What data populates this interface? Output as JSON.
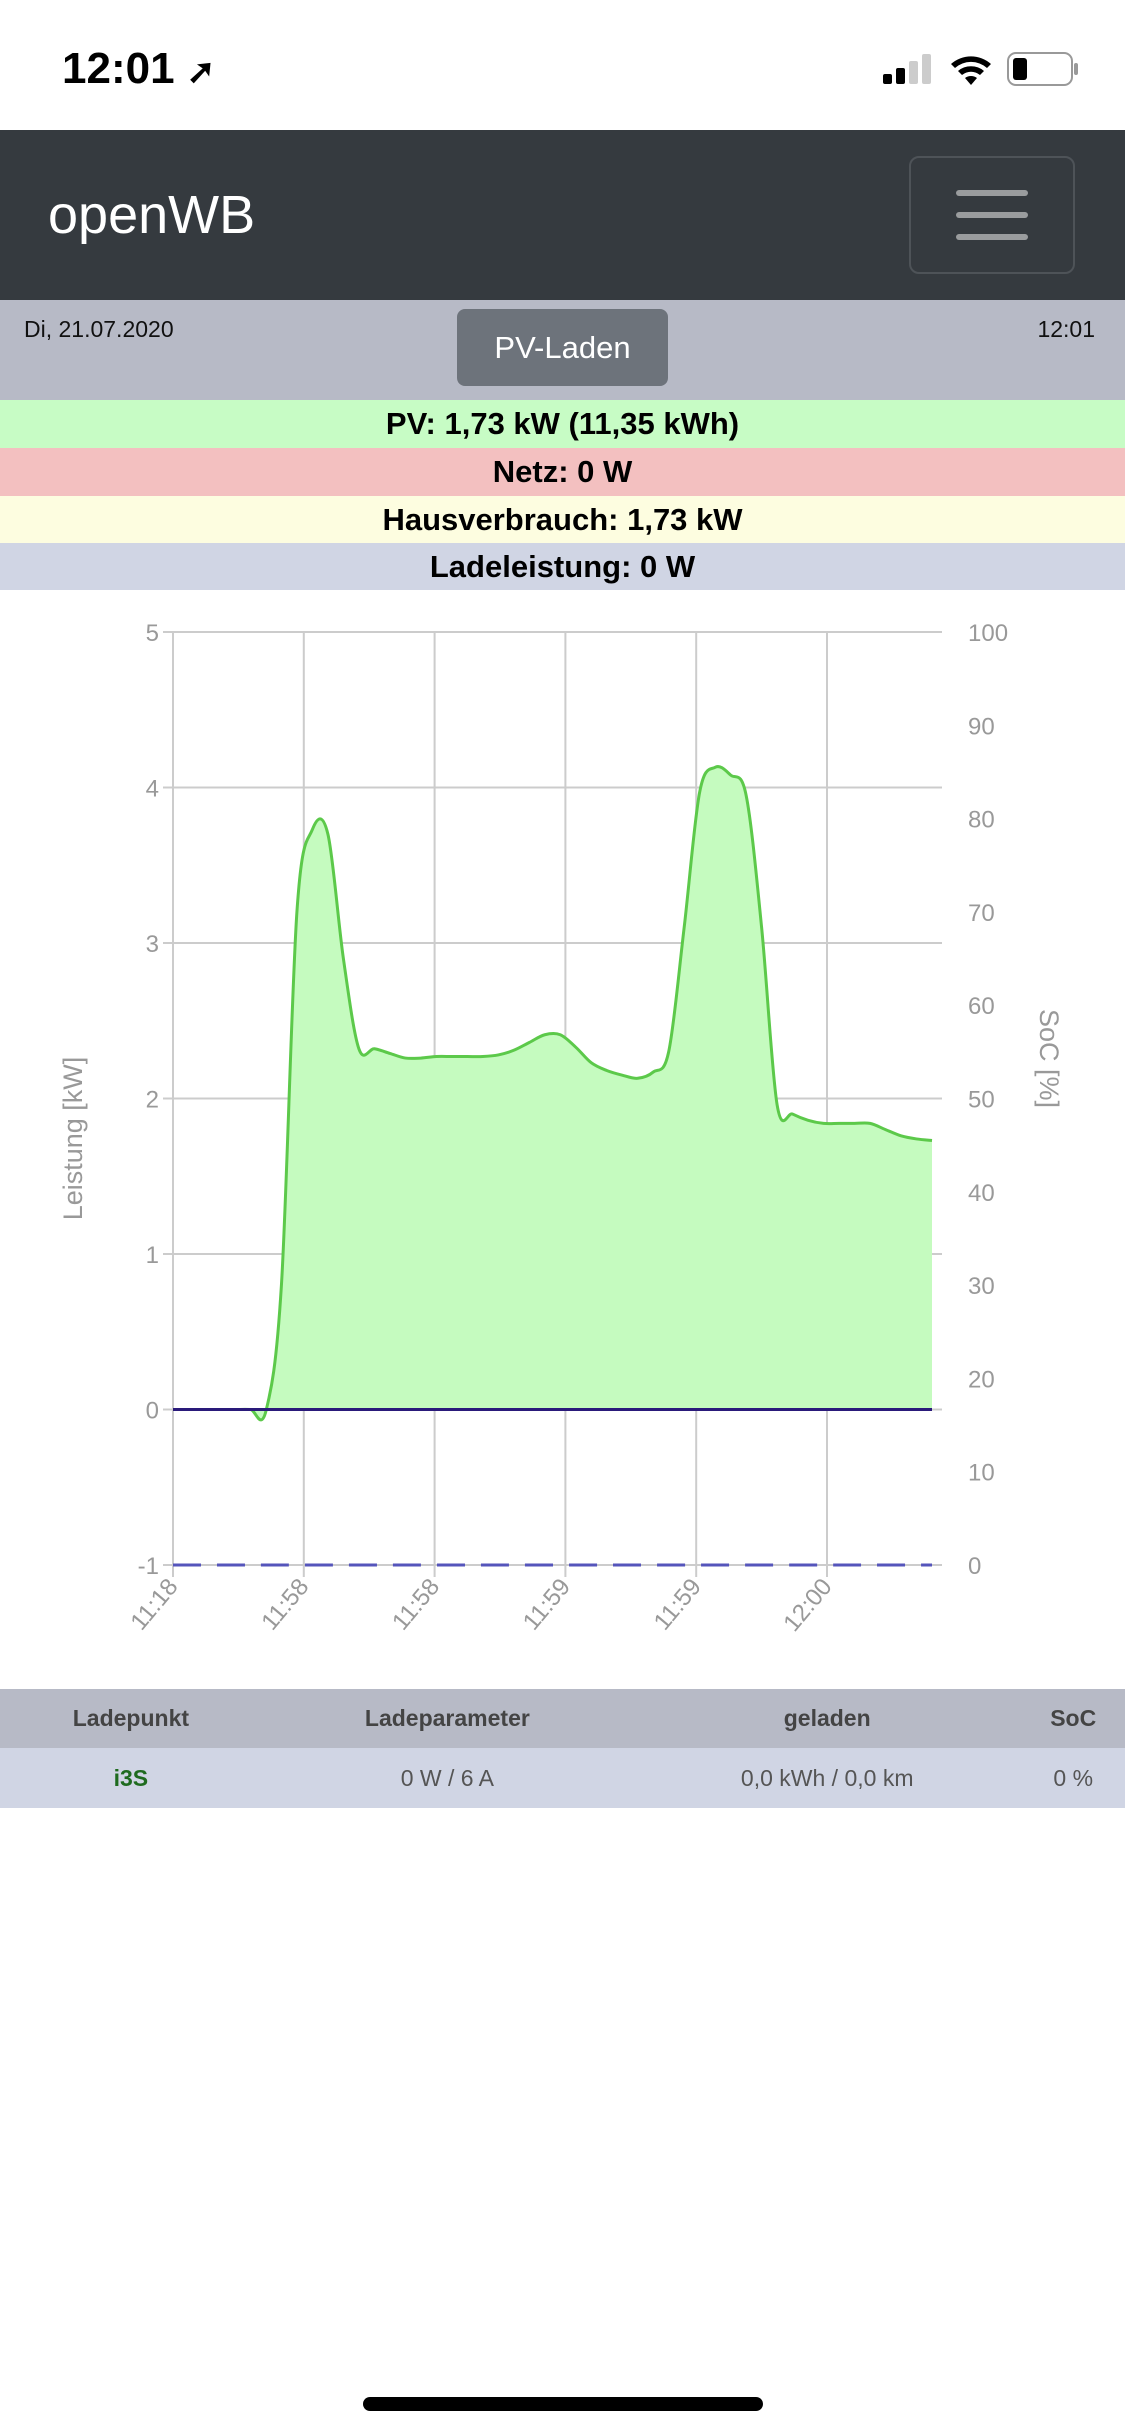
{
  "status_bar": {
    "time": "12:01",
    "icons": [
      "location-arrow-icon",
      "signal-icon",
      "wifi-icon",
      "battery-icon"
    ]
  },
  "navbar": {
    "brand": "openWB",
    "menu_icon": "hamburger-icon"
  },
  "info": {
    "date": "Di, 21.07.2020",
    "mode_button": "PV-Laden",
    "time": "12:01"
  },
  "summary": [
    {
      "text": "PV: 1,73 kW (11,35 kWh)",
      "color": "#c7fcc5"
    },
    {
      "text": "Netz: 0 W",
      "color": "#f3c0c0"
    },
    {
      "text": "Hausverbrauch: 1,73 kW",
      "color": "#fdfde0"
    },
    {
      "text": "Ladeleistung: 0 W",
      "color": "#d0d5e4"
    }
  ],
  "chart_data": {
    "type": "area",
    "ylabel": "Leistung [kW]",
    "y2label": "SoC [%]",
    "ylim": [
      -1,
      5
    ],
    "y2lim": [
      0,
      100
    ],
    "yticks": [
      "5",
      "4",
      "3",
      "2",
      "1",
      "0",
      "-1"
    ],
    "y2ticks": [
      "100",
      "90",
      "80",
      "70",
      "60",
      "50",
      "40",
      "30",
      "20",
      "10",
      "0"
    ],
    "xticks": [
      "11:18",
      "11:58",
      "11:58",
      "11:59",
      "11:59",
      "12:00"
    ],
    "grid": true,
    "series": [
      {
        "values": [
          0,
          0,
          0,
          0,
          0,
          0,
          -0.01,
          0.8,
          3.2,
          3.73,
          3.7,
          2.9,
          2.32,
          2.32,
          2.29,
          2.26,
          2.26,
          2.27,
          2.27,
          2.27,
          2.27,
          2.28,
          2.31,
          2.36,
          2.41,
          2.41,
          2.33,
          2.23,
          2.18,
          2.15,
          2.13,
          2.17,
          2.3,
          3.1,
          3.97,
          4.13,
          4.08,
          3.95,
          3.1,
          1.96,
          1.9,
          1.86,
          1.84,
          1.84,
          1.84,
          1.84,
          1.8,
          1.76,
          1.74,
          1.73
        ],
        "color": "#5cc94a",
        "fill": "#c5fbbf"
      },
      {
        "values": [
          0,
          0
        ],
        "color": "#2a1a7a"
      },
      {
        "values": [
          -1,
          -1
        ],
        "color": "#5555bb",
        "dashed": true
      }
    ]
  },
  "table": {
    "headers": [
      "Ladepunkt",
      "Ladeparameter",
      "geladen",
      "SoC"
    ],
    "rows": [
      [
        "i3S",
        "0 W / 6 A",
        "0,0 kWh / 0,0 km",
        "0 %"
      ]
    ]
  }
}
